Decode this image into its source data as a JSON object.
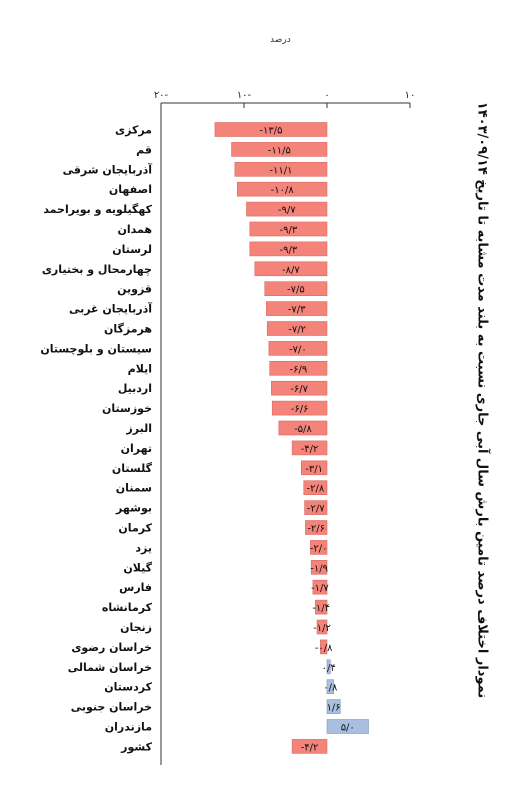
{
  "page": {
    "unit_label": "درصد",
    "title": "نمودار اختلاف درصد تامین بارش سال آبی جاری نسبت به بلند مدت مشابه تا تاریخ ۱۴۰۳/۰۹/۱۴"
  },
  "chart_data": {
    "type": "bar",
    "orientation": "horizontal",
    "title": "نمودار اختلاف درصد تامین بارش سال آبی جاری نسبت به بلند مدت مشابه تا تاریخ ۱۴۰۳/۰۹/۱۴",
    "xlabel": "درصد",
    "xlim": [
      -20,
      10
    ],
    "ticks": [
      -20,
      -10,
      0,
      10
    ],
    "tick_labels": [
      "۲۰-",
      "۱۰-",
      "۰",
      "۱۰"
    ],
    "grid": false,
    "colors": {
      "negative": "#f4837a",
      "positive": "#a9bfdf",
      "negative_stroke": "#d86a62",
      "positive_stroke": "#7f98bd",
      "axis": "#333333"
    },
    "categories": [
      "مرکزی",
      "قم",
      "آذربایجان شرقی",
      "اصفهان",
      "کهگیلویه و بویراحمد",
      "همدان",
      "لرستان",
      "چهارمحال و بختیاری",
      "قزوین",
      "آذربایجان غربی",
      "هرمزگان",
      "سیستان و بلوچستان",
      "ایلام",
      "اردبیل",
      "خوزستان",
      "البرز",
      "تهران",
      "گلستان",
      "سمنان",
      "بوشهر",
      "کرمان",
      "یزد",
      "گیلان",
      "فارس",
      "کرمانشاه",
      "زنجان",
      "خراسان رضوی",
      "خراسان شمالی",
      "کردستان",
      "خراسان جنوبی",
      "مازندران",
      "کشور"
    ],
    "values": [
      -13.5,
      -11.5,
      -11.1,
      -10.8,
      -9.7,
      -9.3,
      -9.3,
      -8.7,
      -7.5,
      -7.3,
      -7.2,
      -7.0,
      -6.9,
      -6.7,
      -6.6,
      -5.8,
      -4.2,
      -3.1,
      -2.8,
      -2.7,
      -2.6,
      -2.0,
      -1.9,
      -1.7,
      -1.4,
      -1.2,
      -0.8,
      0.4,
      0.8,
      1.6,
      5.0,
      -4.2
    ],
    "value_labels": [
      "-۱۳/۵",
      "-۱۱/۵",
      "-۱۱/۱",
      "-۱۰/۸",
      "-۹/۷",
      "-۹/۳",
      "-۹/۳",
      "-۸/۷",
      "-۷/۵",
      "-۷/۳",
      "-۷/۲",
      "-۷/۰",
      "-۶/۹",
      "-۶/۷",
      "-۶/۶",
      "-۵/۸",
      "-۴/۲",
      "-۳/۱",
      "-۲/۸",
      "-۲/۷",
      "-۲/۶",
      "-۲/۰",
      "-۱/۹",
      "-۱/۷",
      "-۱/۴",
      "-۱/۲",
      "-۰/۸",
      "۰/۴",
      "۰/۸",
      "۱/۶",
      "۵/۰",
      "-۴/۲"
    ]
  }
}
